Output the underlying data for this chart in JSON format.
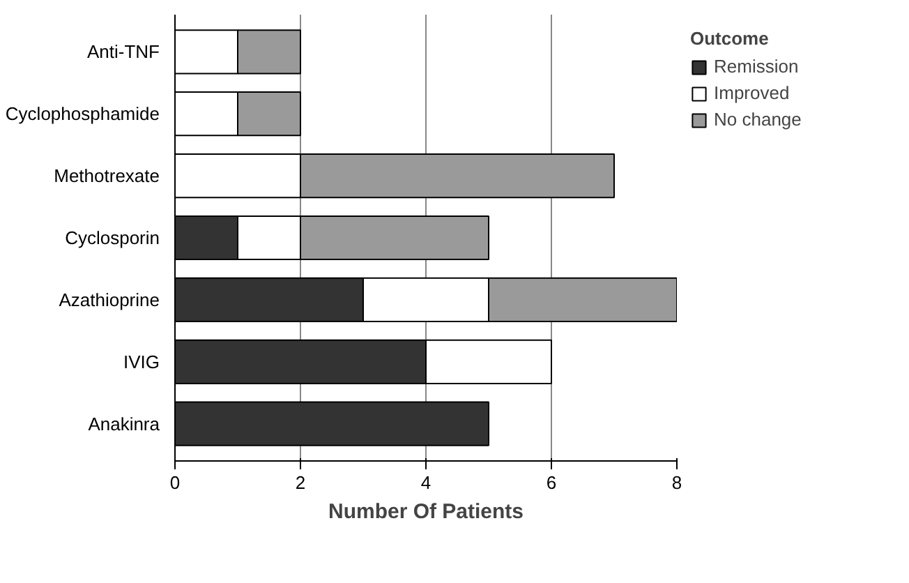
{
  "chart_data": {
    "type": "bar",
    "orientation": "horizontal",
    "stacked": true,
    "categories": [
      "Anti-TNF",
      "Cyclophosphamide",
      "Methotrexate",
      "Cyclosporin",
      "Azathioprine",
      "IVIG",
      "Anakinra"
    ],
    "series": [
      {
        "name": "Remission",
        "color": "#333333",
        "values": [
          0,
          0,
          0,
          1,
          3,
          4,
          5
        ]
      },
      {
        "name": "Improved",
        "color": "#ffffff",
        "values": [
          1,
          1,
          2,
          1,
          2,
          2,
          0
        ]
      },
      {
        "name": "No change",
        "color": "#9a9a9a",
        "values": [
          1,
          1,
          5,
          3,
          3,
          0,
          0
        ]
      }
    ],
    "xlabel": "Number Of Patients",
    "legend_title": "Outcome",
    "legend": "right",
    "xlim": [
      0,
      8
    ],
    "xticks": [
      0,
      2,
      4,
      6,
      8
    ],
    "grid": "x"
  }
}
